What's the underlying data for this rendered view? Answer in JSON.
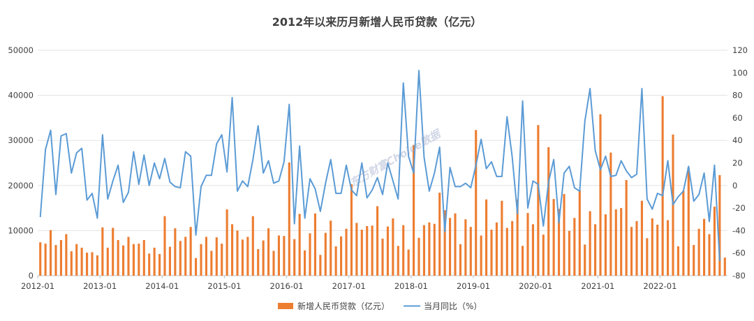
{
  "chart_data": {
    "type": "bar+line",
    "title": "2012年以来历月新增人民币贷款（亿元）",
    "watermark": "东方财富Choice数据",
    "x_tick_labels": [
      "2012-01",
      "2013-01",
      "2014-01",
      "2015-01",
      "2016-01",
      "2017-01",
      "2018-01",
      "2019-01",
      "2020-01",
      "2021-01",
      "2022-01"
    ],
    "y_left": {
      "min": 0,
      "max": 50000,
      "step": 10000,
      "ticks": [
        "0",
        "10000",
        "20000",
        "30000",
        "40000",
        "50000"
      ]
    },
    "y_right": {
      "min": -80,
      "max": 120,
      "step": 20,
      "ticks": [
        "-80",
        "-60",
        "-40",
        "-20",
        "0",
        "20",
        "40",
        "60",
        "80",
        "100",
        "120"
      ]
    },
    "start_month": "2012-01",
    "series": [
      {
        "name": "新增人民币贷款（亿元）",
        "kind": "bar",
        "axis": "left",
        "color": "#ED7D31",
        "values": [
          7400,
          7100,
          10100,
          6800,
          7900,
          9200,
          5400,
          7000,
          6200,
          5100,
          5200,
          4500,
          10700,
          6200,
          10600,
          7900,
          6700,
          8600,
          7000,
          7100,
          7900,
          4900,
          6200,
          4800,
          13200,
          6400,
          10500,
          7700,
          8600,
          10800,
          3900,
          7000,
          8600,
          5500,
          8500,
          7100,
          14700,
          11400,
          10000,
          8000,
          8600,
          13200,
          5900,
          7800,
          10500,
          5500,
          8900,
          8800,
          25100,
          8100,
          13700,
          5600,
          9400,
          13800,
          4600,
          9500,
          12200,
          6500,
          8700,
          10400,
          20300,
          11700,
          10200,
          11000,
          11100,
          15400,
          8200,
          10900,
          12700,
          6600,
          11200,
          5800,
          29000,
          8400,
          11200,
          11800,
          11500,
          18400,
          14500,
          12800,
          13800,
          6970,
          12500,
          10800,
          32300,
          8900,
          16900,
          10200,
          11800,
          16600,
          10600,
          12100,
          16900,
          6600,
          13900,
          11400,
          33400,
          9100,
          28500,
          17000,
          14800,
          18100,
          9925,
          12800,
          19000,
          6900,
          14300,
          11400,
          35800,
          13600,
          27300,
          14700,
          15000,
          21200,
          10800,
          12100,
          16600,
          8300,
          12700,
          11300,
          39800,
          12300,
          31300,
          6500,
          18900,
          24000,
          6800,
          10400,
          12600,
          9200,
          15300,
          22300,
          4000
        ]
      },
      {
        "name": "当月同比（%）",
        "kind": "line",
        "axis": "right",
        "color": "#5B9BD5",
        "values": [
          -28,
          32,
          49,
          -8,
          44,
          46,
          11,
          29,
          33,
          -13,
          -7,
          -29,
          45,
          -12,
          4,
          18,
          -15,
          -6,
          30,
          1,
          27,
          0,
          20,
          6,
          24,
          3,
          -1,
          -2,
          30,
          26,
          -44,
          -1,
          9,
          9,
          37,
          45,
          12,
          78,
          -5,
          4,
          -1,
          23,
          53,
          11,
          22,
          2,
          4,
          21,
          72,
          -34,
          35,
          -29,
          6,
          -3,
          -23,
          2,
          23,
          -7,
          -7,
          18,
          -4,
          -9,
          20,
          -11,
          -4,
          7,
          -8,
          20,
          4,
          -12,
          91,
          26,
          11,
          102,
          25,
          -5,
          11,
          34,
          -41,
          16,
          -1,
          -1,
          2,
          -2,
          18,
          41,
          15,
          21,
          8,
          8,
          61,
          25,
          -25,
          75,
          -20,
          4,
          1,
          -36,
          3,
          23,
          -33,
          11,
          17,
          -2,
          -5,
          57,
          86,
          31,
          14,
          26,
          8,
          9,
          22,
          13,
          7,
          10,
          86,
          -12,
          -21,
          -7,
          -9,
          22,
          -17,
          -10,
          -5,
          17,
          -14,
          -8,
          11,
          -32,
          18,
          -67
        ]
      }
    ],
    "legend_position": "bottom",
    "grid": true
  }
}
